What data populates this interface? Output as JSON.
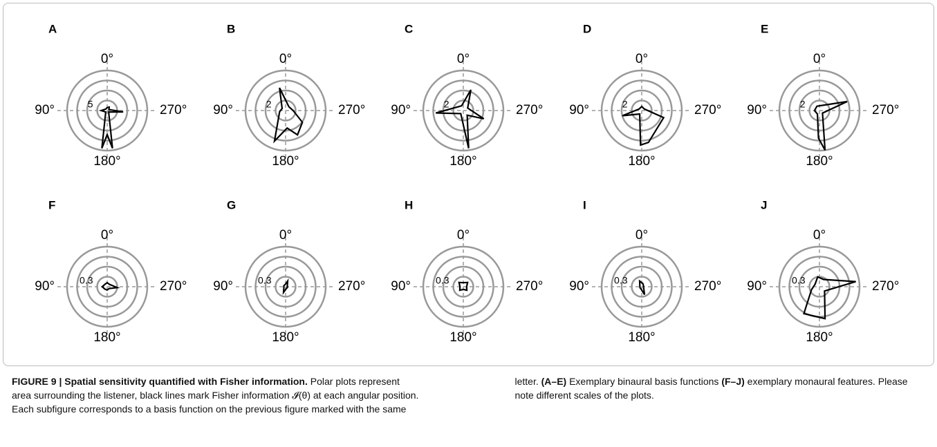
{
  "chart_data": [
    {
      "type": "polar",
      "title": "A",
      "rlim": [
        0,
        20
      ],
      "rticks": [
        5
      ],
      "color": "#000000",
      "thetaticks": [
        {
          "value": 0,
          "label": "0°"
        },
        {
          "value": 90,
          "label": "90°"
        },
        {
          "value": 180,
          "label": "180°"
        },
        {
          "value": 270,
          "label": "270°"
        }
      ],
      "theta": [
        0,
        45,
        90,
        135,
        172,
        180,
        188,
        225,
        265,
        300,
        330
      ],
      "r": [
        1.5,
        1,
        3,
        1,
        19,
        12,
        19,
        1,
        8,
        1,
        2
      ]
    },
    {
      "type": "polar",
      "title": "B",
      "rlim": [
        0,
        8
      ],
      "rticks": [
        2
      ],
      "color": "#000000",
      "thetaticks": [
        {
          "value": 0,
          "label": "0°"
        },
        {
          "value": 90,
          "label": "90°"
        },
        {
          "value": 180,
          "label": "180°"
        },
        {
          "value": 270,
          "label": "270°"
        }
      ],
      "theta": [
        15,
        60,
        100,
        160,
        185,
        206,
        235,
        270,
        320
      ],
      "r": [
        4.7,
        0.8,
        1.2,
        6.5,
        3.5,
        5.4,
        4.1,
        1.5,
        1.0
      ]
    },
    {
      "type": "polar",
      "title": "C",
      "rlim": [
        0,
        8
      ],
      "rticks": [
        2
      ],
      "color": "#000000",
      "thetaticks": [
        {
          "value": 0,
          "label": "0°"
        },
        {
          "value": 90,
          "label": "90°"
        },
        {
          "value": 180,
          "label": "180°"
        },
        {
          "value": 270,
          "label": "270°"
        }
      ],
      "theta": [
        340,
        20,
        95,
        140,
        188,
        220,
        248,
        300
      ],
      "r": [
        4.4,
        1.0,
        5.5,
        0.8,
        7.6,
        1.2,
        4.4,
        1.0
      ]
    },
    {
      "type": "polar",
      "title": "D",
      "rlim": [
        0,
        8
      ],
      "rticks": [
        2
      ],
      "color": "#000000",
      "thetaticks": [
        {
          "value": 0,
          "label": "0°"
        },
        {
          "value": 90,
          "label": "90°"
        },
        {
          "value": 180,
          "label": "180°"
        },
        {
          "value": 270,
          "label": "270°"
        }
      ],
      "theta": [
        0,
        60,
        105,
        150,
        178,
        192,
        252,
        300
      ],
      "r": [
        0.8,
        0.6,
        4.0,
        0.8,
        6.9,
        6.5,
        4.6,
        0.6
      ]
    },
    {
      "type": "polar",
      "title": "E",
      "rlim": [
        0,
        8
      ],
      "rticks": [
        2
      ],
      "color": "#000000",
      "thetaticks": [
        {
          "value": 0,
          "label": "0°"
        },
        {
          "value": 90,
          "label": "90°"
        },
        {
          "value": 180,
          "label": "180°"
        },
        {
          "value": 270,
          "label": "270°"
        }
      ],
      "theta": [
        330,
        30,
        90,
        150,
        178,
        188,
        230,
        288
      ],
      "r": [
        1.2,
        1.0,
        1.0,
        0.8,
        5.5,
        8.0,
        0.8,
        5.8
      ]
    },
    {
      "type": "polar",
      "title": "F",
      "rlim": [
        0,
        1.2
      ],
      "rticks": [
        0.3
      ],
      "color": "#000000",
      "thetaticks": [
        {
          "value": 0,
          "label": "0°"
        },
        {
          "value": 90,
          "label": "90°"
        },
        {
          "value": 180,
          "label": "180°"
        },
        {
          "value": 270,
          "label": "270°"
        }
      ],
      "theta": [
        0,
        45,
        90,
        135,
        180,
        225,
        265,
        315
      ],
      "r": [
        0.12,
        0.1,
        0.15,
        0.1,
        0.1,
        0.08,
        0.3,
        0.1
      ]
    },
    {
      "type": "polar",
      "title": "G",
      "rlim": [
        0,
        1.2
      ],
      "rticks": [
        0.3
      ],
      "color": "#000000",
      "thetaticks": [
        {
          "value": 0,
          "label": "0°"
        },
        {
          "value": 90,
          "label": "90°"
        },
        {
          "value": 180,
          "label": "180°"
        },
        {
          "value": 270,
          "label": "270°"
        }
      ],
      "theta": [
        0,
        60,
        120,
        160,
        200,
        250,
        300,
        340
      ],
      "r": [
        0.08,
        0.06,
        0.06,
        0.18,
        0.06,
        0.06,
        0.06,
        0.18
      ]
    },
    {
      "type": "polar",
      "title": "H",
      "rlim": [
        0,
        1.2
      ],
      "rticks": [
        0.3
      ],
      "color": "#000000",
      "thetaticks": [
        {
          "value": 0,
          "label": "0°"
        },
        {
          "value": 90,
          "label": "90°"
        },
        {
          "value": 180,
          "label": "180°"
        },
        {
          "value": 270,
          "label": "270°"
        }
      ],
      "theta": [
        0,
        45,
        90,
        135,
        180,
        225,
        270,
        315
      ],
      "r": [
        0.12,
        0.18,
        0.1,
        0.15,
        0.08,
        0.15,
        0.1,
        0.18
      ]
    },
    {
      "type": "polar",
      "title": "I",
      "rlim": [
        0,
        1.2
      ],
      "rticks": [
        0.3
      ],
      "color": "#000000",
      "thetaticks": [
        {
          "value": 0,
          "label": "0°"
        },
        {
          "value": 90,
          "label": "90°"
        },
        {
          "value": 180,
          "label": "180°"
        },
        {
          "value": 270,
          "label": "270°"
        }
      ],
      "theta": [
        20,
        70,
        120,
        170,
        200,
        250,
        300,
        340
      ],
      "r": [
        0.18,
        0.06,
        0.06,
        0.08,
        0.25,
        0.06,
        0.06,
        0.1
      ]
    },
    {
      "type": "polar",
      "title": "J",
      "rlim": [
        0,
        1.2
      ],
      "rticks": [
        0.3
      ],
      "color": "#000000",
      "thetaticks": [
        {
          "value": 0,
          "label": "0°"
        },
        {
          "value": 90,
          "label": "90°"
        },
        {
          "value": 180,
          "label": "180°"
        },
        {
          "value": 270,
          "label": "270°"
        }
      ],
      "theta": [
        10,
        60,
        110,
        150,
        190,
        230,
        278,
        330
      ],
      "r": [
        0.3,
        0.15,
        0.25,
        0.93,
        0.97,
        0.2,
        1.1,
        0.25
      ]
    }
  ],
  "caption": {
    "parts": [
      {
        "text": "FIGURE 9 | Spatial sensitivity quantified with Fisher information.",
        "bold": true
      },
      {
        "text": " Polar plots represent area surrounding the listener, black lines mark Fisher information 𝓘(θ) at each angular position. Each subfigure corresponds to a basis function on the previous figure marked with the same letter. ",
        "bold": false
      },
      {
        "text": "(A–E)",
        "bold": true
      },
      {
        "text": " Exemplary binaural basis functions ",
        "bold": false
      },
      {
        "text": "(F–J)",
        "bold": true
      },
      {
        "text": " exemplary monaural features. Please note different scales of the plots.",
        "bold": false
      }
    ]
  }
}
